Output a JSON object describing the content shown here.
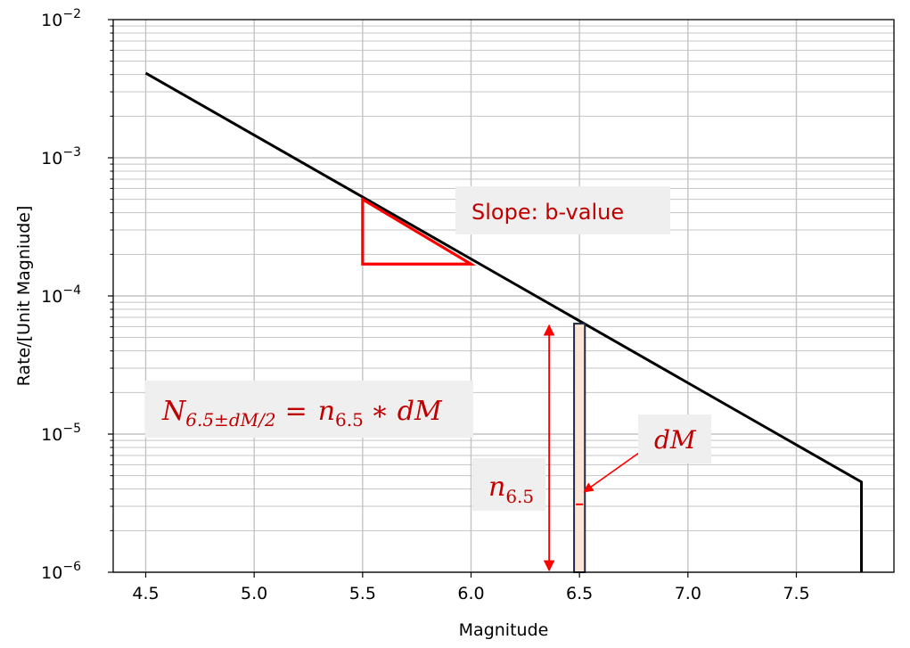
{
  "chart_data": {
    "type": "line",
    "xlabel": "Magnitude",
    "ylabel": "Rate/[Unit Magniude]",
    "xlim": [
      4.35,
      7.95
    ],
    "ylim_log10": [
      -6,
      -2
    ],
    "y_scale": "log",
    "grid": true,
    "x_ticks": [
      "4.5",
      "5.0",
      "5.5",
      "6.0",
      "6.5",
      "7.0",
      "7.5"
    ],
    "y_ticks": [
      {
        "base": "10",
        "exp": "−2"
      },
      {
        "base": "10",
        "exp": "−3"
      },
      {
        "base": "10",
        "exp": "−4"
      },
      {
        "base": "10",
        "exp": "−5"
      },
      {
        "base": "10",
        "exp": "−6"
      }
    ],
    "series": [
      {
        "color": "#000000",
        "x": [
          4.5,
          7.8,
          7.8
        ],
        "y": [
          0.0041,
          4.5e-06,
          1e-06
        ]
      }
    ],
    "slope_triangle": {
      "color": "#ff0000",
      "x": [
        5.5,
        6.0
      ],
      "y": [
        0.0005,
        0.00017
      ]
    },
    "bar": {
      "x": 6.5,
      "width": 0.05,
      "y": [
        1e-06,
        6.3e-05
      ],
      "fill": "#fbe5d6",
      "edge": "#1f2a44"
    },
    "bar_marker": {
      "y": 3.1e-06
    },
    "annotations": {
      "slope_label": "Slope: b-value",
      "eq_lhs_base": "N",
      "eq_lhs_sub": "6.5±dM/2",
      "eq_equals": "=",
      "eq_rhs_base": "n",
      "eq_rhs_sub": "6.5",
      "eq_rhs_tail": "∗ dM",
      "dm_label": "dM",
      "n_label_base": "n",
      "n_label_sub": "6.5"
    }
  }
}
